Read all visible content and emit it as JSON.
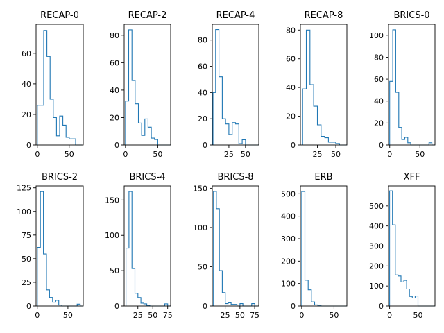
{
  "chart_data": [
    {
      "type": "histogram",
      "title": "RECAP-0",
      "bin_edges": [
        0,
        5,
        10,
        15,
        20,
        25,
        30,
        35,
        40,
        45,
        50,
        55,
        60,
        65,
        70
      ],
      "values": [
        26,
        26,
        75,
        58,
        30,
        18,
        6,
        19,
        13,
        5,
        4,
        4,
        0,
        0
      ],
      "xlim": [
        -2,
        72
      ],
      "ylim": [
        0,
        79
      ],
      "xticks": [
        0,
        50
      ],
      "xtick_labels": [
        "0",
        "50"
      ],
      "yticks": [
        0,
        20,
        40,
        60
      ],
      "ytick_labels": [
        "0",
        "20",
        "40",
        "60"
      ],
      "color": "#1f77b4"
    },
    {
      "type": "histogram",
      "title": "RECAP-2",
      "bin_edges": [
        0,
        5,
        10,
        15,
        20,
        25,
        30,
        35,
        40,
        45,
        50,
        55,
        60,
        65,
        70
      ],
      "values": [
        32,
        84,
        47,
        30,
        16,
        7,
        19,
        13,
        5,
        4,
        0,
        0,
        0,
        0
      ],
      "xlim": [
        -2,
        70
      ],
      "ylim": [
        0,
        88
      ],
      "xticks": [
        0,
        50
      ],
      "xtick_labels": [
        "0",
        "50"
      ],
      "yticks": [
        0,
        20,
        40,
        60,
        80
      ],
      "ytick_labels": [
        "0",
        "20",
        "40",
        "60",
        "80"
      ],
      "color": "#1f77b4"
    },
    {
      "type": "histogram",
      "title": "RECAP-4",
      "bin_edges": [
        1,
        5,
        10,
        15,
        20,
        25,
        30,
        35,
        40,
        45,
        50,
        55,
        60,
        65,
        70
      ],
      "values": [
        40,
        88,
        52,
        20,
        16,
        8,
        17,
        16,
        1,
        4,
        0,
        0,
        0,
        0
      ],
      "xlim": [
        0,
        70
      ],
      "ylim": [
        0,
        92
      ],
      "xticks": [
        25,
        50
      ],
      "xtick_labels": [
        "25",
        "50"
      ],
      "yticks": [
        0,
        20,
        40,
        60,
        80
      ],
      "ytick_labels": [
        "0",
        "20",
        "40",
        "60",
        "80"
      ],
      "color": "#1f77b4"
    },
    {
      "type": "histogram",
      "title": "RECAP-8",
      "bin_edges": [
        5,
        10,
        15,
        20,
        25,
        30,
        35,
        40,
        45,
        50,
        55,
        60,
        65
      ],
      "values": [
        39,
        80,
        42,
        27,
        14,
        6,
        5,
        2,
        2,
        1,
        0,
        0
      ],
      "xlim": [
        2,
        65
      ],
      "ylim": [
        0,
        84
      ],
      "xticks": [
        25,
        50
      ],
      "xtick_labels": [
        "25",
        "50"
      ],
      "yticks": [
        0,
        20,
        40,
        60,
        80
      ],
      "ytick_labels": [
        "0",
        "20",
        "40",
        "60",
        "80"
      ],
      "color": "#1f77b4"
    },
    {
      "type": "histogram",
      "title": "BRICS-0",
      "bin_edges": [
        0,
        5,
        10,
        15,
        20,
        25,
        30,
        35,
        40,
        45,
        50,
        55,
        60,
        65,
        70,
        75
      ],
      "values": [
        58,
        105,
        48,
        16,
        5,
        7,
        2,
        0,
        0,
        0,
        0,
        0,
        0,
        2,
        0
      ],
      "xlim": [
        -2,
        75
      ],
      "ylim": [
        0,
        110
      ],
      "xticks": [
        0,
        50
      ],
      "xtick_labels": [
        "0",
        "50"
      ],
      "yticks": [
        0,
        20,
        40,
        60,
        80,
        100
      ],
      "ytick_labels": [
        "0",
        "20",
        "40",
        "60",
        "80",
        "100"
      ],
      "color": "#1f77b4"
    },
    {
      "type": "histogram",
      "title": "BRICS-2",
      "bin_edges": [
        0,
        5,
        10,
        15,
        20,
        25,
        30,
        35,
        40,
        45,
        50,
        55,
        60,
        65,
        70,
        75
      ],
      "values": [
        62,
        121,
        55,
        17,
        9,
        4,
        6,
        1,
        0,
        0,
        0,
        0,
        0,
        2,
        0
      ],
      "xlim": [
        -2,
        75
      ],
      "ylim": [
        0,
        127
      ],
      "xticks": [
        0,
        50
      ],
      "xtick_labels": [
        "0",
        "50"
      ],
      "yticks": [
        0,
        25,
        50,
        75,
        100,
        125
      ],
      "ytick_labels": [
        "0",
        "25",
        "50",
        "75",
        "100",
        "125"
      ],
      "color": "#1f77b4"
    },
    {
      "type": "histogram",
      "title": "BRICS-4",
      "bin_edges": [
        5,
        10,
        15,
        20,
        25,
        30,
        35,
        40,
        45,
        50,
        55,
        60,
        65,
        70,
        75,
        80
      ],
      "values": [
        82,
        162,
        53,
        18,
        12,
        4,
        3,
        1,
        0,
        0,
        0,
        0,
        0,
        3,
        0
      ],
      "xlim": [
        2,
        80
      ],
      "ylim": [
        0,
        170
      ],
      "xticks": [
        25,
        50,
        75
      ],
      "xtick_labels": [
        "25",
        "50",
        "75"
      ],
      "yticks": [
        0,
        50,
        100,
        150
      ],
      "ytick_labels": [
        "0",
        "50",
        "100",
        "150"
      ],
      "color": "#1f77b4"
    },
    {
      "type": "histogram",
      "title": "BRICS-8",
      "bin_edges": [
        5,
        10,
        15,
        20,
        25,
        30,
        35,
        40,
        45,
        50,
        55,
        60,
        65,
        70,
        75,
        80
      ],
      "values": [
        146,
        124,
        45,
        17,
        3,
        4,
        2,
        2,
        0,
        3,
        0,
        0,
        0,
        3,
        0
      ],
      "xlim": [
        3,
        82
      ],
      "ylim": [
        0,
        153
      ],
      "xticks": [
        25,
        50,
        75
      ],
      "xtick_labels": [
        "25",
        "50",
        "75"
      ],
      "yticks": [
        0,
        50,
        100,
        150
      ],
      "ytick_labels": [
        "0",
        "50",
        "100",
        "150"
      ],
      "color": "#1f77b4"
    },
    {
      "type": "histogram",
      "title": "ERB",
      "bin_edges": [
        0,
        5,
        10,
        15,
        20,
        25,
        30,
        35,
        40,
        45,
        50,
        55,
        60,
        65,
        70
      ],
      "values": [
        510,
        115,
        72,
        18,
        5,
        1,
        0,
        0,
        0,
        0,
        0,
        0,
        0,
        0
      ],
      "xlim": [
        -2,
        70
      ],
      "ylim": [
        0,
        535
      ],
      "xticks": [
        0,
        50
      ],
      "xtick_labels": [
        "0",
        "50"
      ],
      "yticks": [
        0,
        100,
        200,
        300,
        400,
        500
      ],
      "ytick_labels": [
        "0",
        "100",
        "200",
        "300",
        "400",
        "500"
      ],
      "color": "#1f77b4"
    },
    {
      "type": "histogram",
      "title": "XFF",
      "bin_edges": [
        0,
        5,
        10,
        15,
        20,
        25,
        30,
        35,
        40,
        45,
        50,
        55,
        60,
        65,
        70,
        75,
        80
      ],
      "values": [
        575,
        405,
        155,
        150,
        120,
        128,
        85,
        48,
        40,
        50,
        0,
        0,
        0,
        0,
        0,
        0
      ],
      "xlim": [
        -2,
        80
      ],
      "ylim": [
        0,
        600
      ],
      "xticks": [
        0,
        50
      ],
      "xtick_labels": [
        "0",
        "50"
      ],
      "yticks": [
        0,
        100,
        200,
        300,
        400,
        500
      ],
      "ytick_labels": [
        "0",
        "100",
        "200",
        "300",
        "400",
        "500"
      ],
      "color": "#1f77b4"
    }
  ]
}
